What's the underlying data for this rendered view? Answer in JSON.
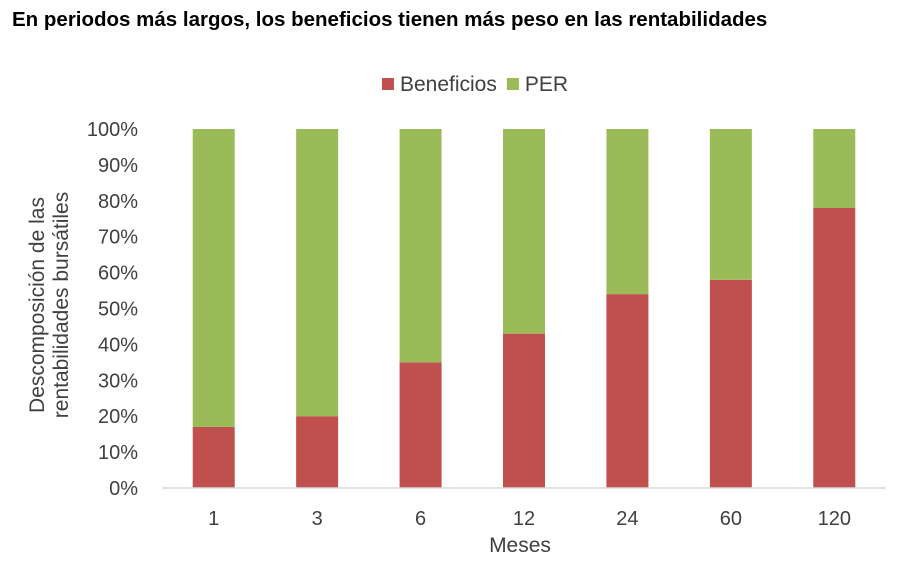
{
  "title": "En periodos más largos, los beneficios tienen más peso en las rentabilidades",
  "chart_data": {
    "type": "bar",
    "stacked": true,
    "normalized": true,
    "categories": [
      "1",
      "3",
      "6",
      "12",
      "24",
      "60",
      "120"
    ],
    "series": [
      {
        "name": "Beneficios",
        "color": "#c0504d",
        "values": [
          17,
          20,
          35,
          43,
          54,
          58,
          78
        ]
      },
      {
        "name": "PER",
        "color": "#9bbb59",
        "values": [
          83,
          80,
          65,
          57,
          46,
          42,
          22
        ]
      }
    ],
    "xlabel": "Meses",
    "ylabel_lines": [
      "Descomposición de las",
      "rentabilidades bursátiles"
    ],
    "ylim": [
      0,
      100
    ],
    "yticks": [
      "0%",
      "10%",
      "20%",
      "30%",
      "40%",
      "50%",
      "60%",
      "70%",
      "80%",
      "90%",
      "100%"
    ],
    "legend_position": "top-center",
    "grid": false
  }
}
